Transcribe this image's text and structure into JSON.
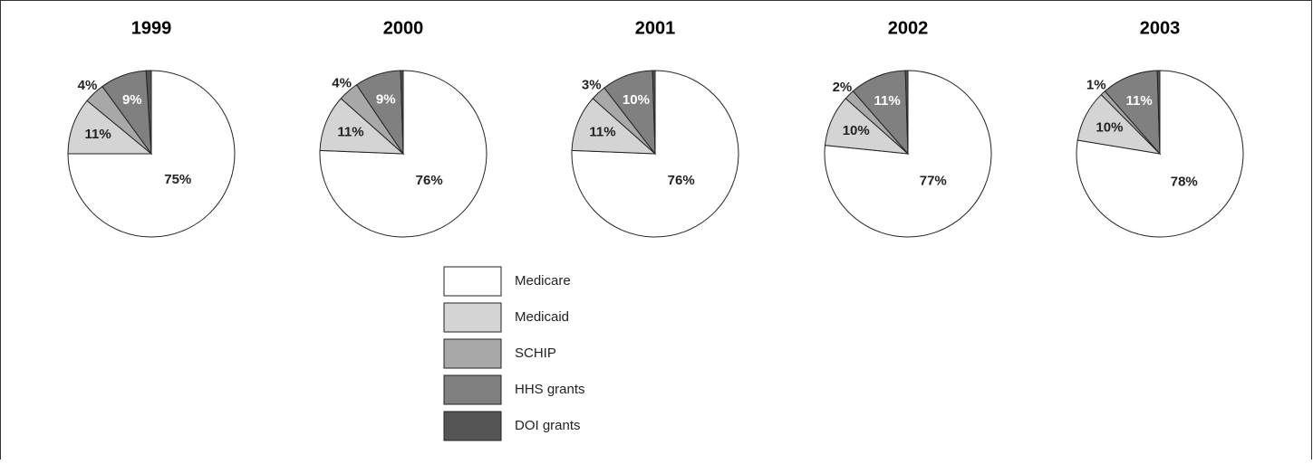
{
  "chart_data": [
    {
      "type": "pie",
      "title": "1999",
      "categories": [
        "Medicare",
        "Medicaid",
        "SCHIP",
        "HHS grants",
        "DOI grants"
      ],
      "values": [
        75,
        11,
        4,
        9,
        1
      ],
      "value_labels": [
        "75%",
        "11%",
        "4%",
        "9%",
        null
      ],
      "colors": [
        "#ffffff",
        "#d4d4d4",
        "#a8a8a8",
        "#808080",
        "#555555"
      ]
    },
    {
      "type": "pie",
      "title": "2000",
      "categories": [
        "Medicare",
        "Medicaid",
        "SCHIP",
        "HHS grants",
        "DOI grants"
      ],
      "values": [
        76,
        11,
        4,
        9,
        0.5
      ],
      "value_labels": [
        "76%",
        "11%",
        "4%",
        "9%",
        null
      ],
      "colors": [
        "#ffffff",
        "#d4d4d4",
        "#a8a8a8",
        "#808080",
        "#555555"
      ]
    },
    {
      "type": "pie",
      "title": "2001",
      "categories": [
        "Medicare",
        "Medicaid",
        "SCHIP",
        "HHS grants",
        "DOI grants"
      ],
      "values": [
        76,
        11,
        3,
        10,
        0.5
      ],
      "value_labels": [
        "76%",
        "11%",
        "3%",
        "10%",
        null
      ],
      "colors": [
        "#ffffff",
        "#d4d4d4",
        "#a8a8a8",
        "#808080",
        "#555555"
      ]
    },
    {
      "type": "pie",
      "title": "2002",
      "categories": [
        "Medicare",
        "Medicaid",
        "SCHIP",
        "HHS grants",
        "DOI grants"
      ],
      "values": [
        77,
        10,
        2,
        11,
        0.5
      ],
      "value_labels": [
        "77%",
        "10%",
        "2%",
        "11%",
        null
      ],
      "colors": [
        "#ffffff",
        "#d4d4d4",
        "#a8a8a8",
        "#808080",
        "#555555"
      ]
    },
    {
      "type": "pie",
      "title": "2003",
      "categories": [
        "Medicare",
        "Medicaid",
        "SCHIP",
        "HHS grants",
        "DOI grants"
      ],
      "values": [
        78,
        10,
        1,
        11,
        0.5
      ],
      "value_labels": [
        "78%",
        "10%",
        "1%",
        "11%",
        null
      ],
      "colors": [
        "#ffffff",
        "#d4d4d4",
        "#a8a8a8",
        "#808080",
        "#555555"
      ]
    }
  ]
}
